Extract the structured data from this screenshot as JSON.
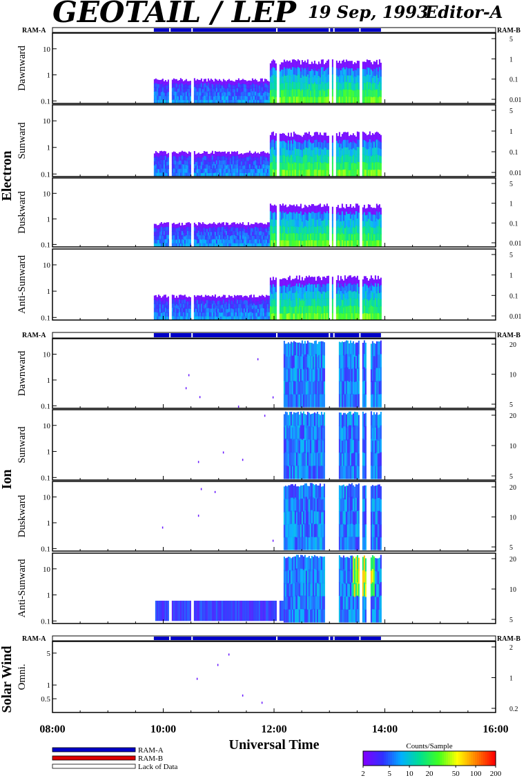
{
  "header": {
    "title": "GEOTAIL / LEP",
    "date": "19 Sep, 1993",
    "editor": "Editor-A"
  },
  "ram_labels": {
    "a": "RAM-A",
    "b": "RAM-B"
  },
  "groups": [
    {
      "name": "Electron",
      "label_y": 255
    },
    {
      "name": "Ion",
      "label_y": 695
    },
    {
      "name": "Solar Wind",
      "label_y": 985
    }
  ],
  "xaxis": {
    "title": "Universal Time",
    "ticks": [
      {
        "label": "08:00",
        "hour": 8
      },
      {
        "label": "10:00",
        "hour": 10
      },
      {
        "label": "12:00",
        "hour": 12
      },
      {
        "label": "14:00",
        "hour": 14
      },
      {
        "label": "16:00",
        "hour": 16
      }
    ],
    "range": [
      8,
      16
    ]
  },
  "legend": {
    "items": [
      {
        "label": "RAM-A",
        "color": "#0000c8"
      },
      {
        "label": "RAM-B",
        "color": "#dc0000"
      },
      {
        "label": "Lack of Data",
        "color": "#ffffff"
      }
    ]
  },
  "colorbar": {
    "title": "Counts/Sample",
    "ticks": [
      "2",
      "5",
      "10",
      "20",
      "50",
      "100",
      "200"
    ],
    "scale": "log",
    "range": [
      2,
      200
    ],
    "colors": [
      "#8000ff",
      "#3030ff",
      "#00b0ff",
      "#00e090",
      "#40ff20",
      "#ffff00",
      "#ff8000",
      "#ff0000"
    ]
  },
  "chart_data": [
    {
      "type": "heatmap",
      "group": "Electron",
      "ylabel": "Dawnward",
      "left_ticks": [
        "0.1",
        "1",
        "10"
      ],
      "right_ticks": [
        "0.01",
        "0.1",
        "1",
        "5"
      ],
      "scale": "log",
      "data_start_hour": 9.83,
      "data_end_hour": 13.93,
      "yrange": [
        0.08,
        40
      ],
      "intensity": "electron"
    },
    {
      "type": "heatmap",
      "group": "Electron",
      "ylabel": "Sunward",
      "left_ticks": [
        "0.1",
        "1",
        "10"
      ],
      "right_ticks": [
        "0.01",
        "0.1",
        "1",
        "5"
      ],
      "scale": "log",
      "data_start_hour": 9.83,
      "data_end_hour": 13.93,
      "yrange": [
        0.08,
        40
      ],
      "intensity": "electron"
    },
    {
      "type": "heatmap",
      "group": "Electron",
      "ylabel": "Duskward",
      "left_ticks": [
        "0.1",
        "1",
        "10"
      ],
      "right_ticks": [
        "0.01",
        "0.1",
        "1",
        "5"
      ],
      "scale": "log",
      "data_start_hour": 9.83,
      "data_end_hour": 13.93,
      "yrange": [
        0.08,
        40
      ],
      "intensity": "electron"
    },
    {
      "type": "heatmap",
      "group": "Electron",
      "ylabel": "Anti-Sunward",
      "left_ticks": [
        "0.1",
        "1",
        "10"
      ],
      "right_ticks": [
        "0.01",
        "0.1",
        "1",
        "5"
      ],
      "scale": "log",
      "data_start_hour": 9.83,
      "data_end_hour": 13.93,
      "yrange": [
        0.08,
        40
      ],
      "intensity": "electron"
    },
    {
      "type": "heatmap",
      "group": "Ion",
      "ylabel": "Dawnward",
      "left_ticks": [
        "0.1",
        "1",
        "10"
      ],
      "right_ticks": [
        "5",
        "10",
        "20"
      ],
      "scale": "log",
      "data_start_hour": 9.83,
      "data_end_hour": 13.93,
      "yrange": [
        0.08,
        40
      ],
      "intensity": "ion"
    },
    {
      "type": "heatmap",
      "group": "Ion",
      "ylabel": "Sunward",
      "left_ticks": [
        "0.1",
        "1",
        "10"
      ],
      "right_ticks": [
        "5",
        "10",
        "20"
      ],
      "scale": "log",
      "data_start_hour": 9.83,
      "data_end_hour": 13.93,
      "yrange": [
        0.08,
        40
      ],
      "intensity": "ion"
    },
    {
      "type": "heatmap",
      "group": "Ion",
      "ylabel": "Duskward",
      "left_ticks": [
        "0.1",
        "1",
        "10"
      ],
      "right_ticks": [
        "5",
        "10",
        "20"
      ],
      "scale": "log",
      "data_start_hour": 9.83,
      "data_end_hour": 13.93,
      "yrange": [
        0.08,
        40
      ],
      "intensity": "ion"
    },
    {
      "type": "heatmap",
      "group": "Ion",
      "ylabel": "Anti-Sunward",
      "left_ticks": [
        "0.1",
        "1",
        "10"
      ],
      "right_ticks": [
        "5",
        "10",
        "20"
      ],
      "scale": "log",
      "data_start_hour": 9.83,
      "data_end_hour": 13.93,
      "yrange": [
        0.08,
        40
      ],
      "intensity": "ion_anti"
    },
    {
      "type": "heatmap",
      "group": "Solar Wind",
      "ylabel": "Omni.",
      "left_ticks": [
        "0.5",
        "1",
        "5"
      ],
      "right_ticks": [
        "0.2",
        "1",
        "2"
      ],
      "scale": "log",
      "data_start_hour": 9.83,
      "data_end_hour": 13.93,
      "yrange": [
        0.25,
        9
      ],
      "intensity": "sparse"
    }
  ]
}
